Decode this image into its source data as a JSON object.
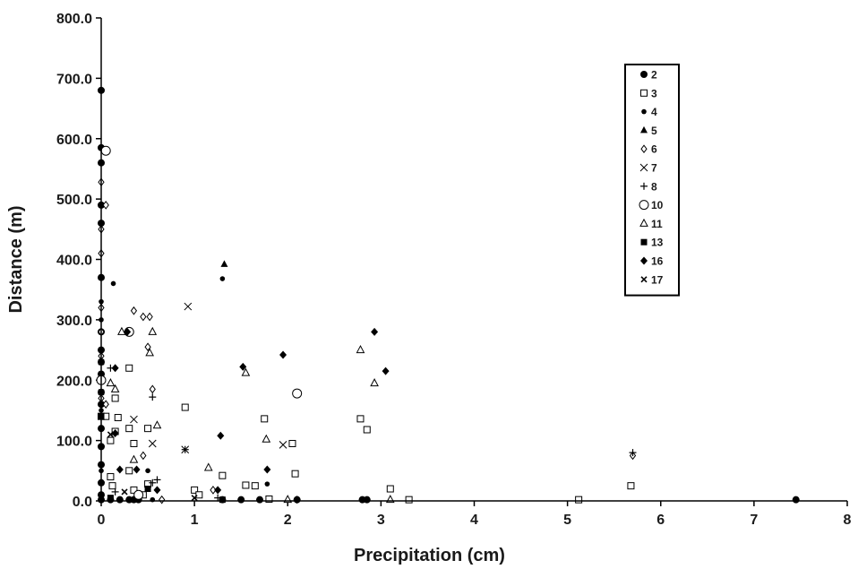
{
  "chart_data": {
    "type": "scatter",
    "title": "",
    "xlabel": "Precipitation (cm)",
    "ylabel": "Distance (m)",
    "xlim": [
      0,
      8
    ],
    "ylim": [
      0,
      800
    ],
    "x_ticks": [
      "0",
      "1",
      "2",
      "3",
      "4",
      "5",
      "6",
      "7",
      "8"
    ],
    "y_ticks": [
      "0.0",
      "100.0",
      "200.0",
      "300.0",
      "400.0",
      "500.0",
      "600.0",
      "700.0",
      "800.0"
    ],
    "grid": false,
    "legend_position": "top-right",
    "series": [
      {
        "name": "2",
        "marker": "filled-circle",
        "points": [
          [
            0,
            680
          ],
          [
            0,
            585
          ],
          [
            0,
            560
          ],
          [
            0,
            490
          ],
          [
            0,
            460
          ],
          [
            0,
            370
          ],
          [
            0,
            280
          ],
          [
            0,
            250
          ],
          [
            0,
            230
          ],
          [
            0,
            210
          ],
          [
            0,
            180
          ],
          [
            0,
            160
          ],
          [
            0,
            120
          ],
          [
            0,
            90
          ],
          [
            0,
            60
          ],
          [
            0,
            30
          ],
          [
            0,
            10
          ],
          [
            0,
            2
          ],
          [
            0.1,
            2
          ],
          [
            0.2,
            2
          ],
          [
            0.3,
            2
          ],
          [
            0.35,
            2
          ],
          [
            0.4,
            2
          ],
          [
            1.3,
            2
          ],
          [
            1.5,
            2
          ],
          [
            1.7,
            2
          ],
          [
            2.1,
            2
          ],
          [
            2.8,
            2
          ],
          [
            2.85,
            2
          ],
          [
            7.45,
            2
          ]
        ]
      },
      {
        "name": "3",
        "marker": "open-square",
        "points": [
          [
            0,
            140
          ],
          [
            0.05,
            140
          ],
          [
            0.15,
            170
          ],
          [
            0.1,
            100
          ],
          [
            0.15,
            115
          ],
          [
            0.18,
            138
          ],
          [
            0.3,
            220
          ],
          [
            0.3,
            120
          ],
          [
            0.35,
            95
          ],
          [
            0.5,
            120
          ],
          [
            0.1,
            40
          ],
          [
            0.12,
            25
          ],
          [
            0.3,
            50
          ],
          [
            0.35,
            18
          ],
          [
            0.45,
            10
          ],
          [
            0.5,
            28
          ],
          [
            0.9,
            155
          ],
          [
            1.0,
            18
          ],
          [
            1.05,
            10
          ],
          [
            1.3,
            42
          ],
          [
            1.55,
            26
          ],
          [
            1.65,
            25
          ],
          [
            1.75,
            136
          ],
          [
            1.8,
            3
          ],
          [
            2.05,
            95
          ],
          [
            2.08,
            45
          ],
          [
            2.78,
            136
          ],
          [
            2.85,
            118
          ],
          [
            3.1,
            20
          ],
          [
            3.3,
            2
          ],
          [
            5.12,
            2
          ],
          [
            5.68,
            25
          ]
        ]
      },
      {
        "name": "4",
        "marker": "small-dot",
        "points": [
          [
            0,
            330
          ],
          [
            0,
            300
          ],
          [
            0,
            200
          ],
          [
            0,
            150
          ],
          [
            0,
            50
          ],
          [
            0.13,
            360
          ],
          [
            0.5,
            50
          ],
          [
            0.55,
            2
          ],
          [
            1.3,
            368
          ],
          [
            1.78,
            28
          ]
        ]
      },
      {
        "name": "5",
        "marker": "filled-triangle",
        "points": [
          [
            1.32,
            392
          ],
          [
            0.3,
            280
          ]
        ]
      },
      {
        "name": "6",
        "marker": "open-diamond",
        "points": [
          [
            0,
            528
          ],
          [
            0,
            450
          ],
          [
            0,
            410
          ],
          [
            0,
            320
          ],
          [
            0,
            280
          ],
          [
            0,
            240
          ],
          [
            0,
            200
          ],
          [
            0,
            170
          ],
          [
            0.05,
            490
          ],
          [
            0.35,
            315
          ],
          [
            0.45,
            305
          ],
          [
            0.52,
            305
          ],
          [
            0.55,
            185
          ],
          [
            0.5,
            255
          ],
          [
            0.05,
            160
          ],
          [
            0.45,
            75
          ],
          [
            0.65,
            2
          ],
          [
            1.2,
            18
          ],
          [
            5.7,
            75
          ]
        ]
      },
      {
        "name": "7",
        "marker": "x",
        "points": [
          [
            0.93,
            322
          ],
          [
            0.35,
            135
          ],
          [
            0.55,
            95
          ],
          [
            0.9,
            85
          ],
          [
            1.95,
            93
          ]
        ]
      },
      {
        "name": "8",
        "marker": "plus",
        "points": [
          [
            0.55,
            172
          ],
          [
            0.1,
            220
          ],
          [
            0.55,
            30
          ],
          [
            0.6,
            35
          ],
          [
            0.15,
            15
          ],
          [
            0.9,
            85
          ],
          [
            1.25,
            5
          ],
          [
            5.7,
            80
          ]
        ]
      },
      {
        "name": "10",
        "marker": "open-circle",
        "points": [
          [
            0.05,
            580
          ],
          [
            0,
            200
          ],
          [
            0.3,
            280
          ],
          [
            2.1,
            178
          ],
          [
            0.4,
            10
          ]
        ]
      },
      {
        "name": "11",
        "marker": "open-triangle",
        "points": [
          [
            0.1,
            195
          ],
          [
            0.15,
            185
          ],
          [
            0.22,
            280
          ],
          [
            0.55,
            280
          ],
          [
            0.52,
            245
          ],
          [
            0.6,
            125
          ],
          [
            0.35,
            68
          ],
          [
            1.15,
            55
          ],
          [
            1.55,
            212
          ],
          [
            1.77,
            102
          ],
          [
            2.78,
            250
          ],
          [
            2.93,
            195
          ],
          [
            2.0,
            2
          ],
          [
            3.1,
            2
          ]
        ]
      },
      {
        "name": "13",
        "marker": "filled-square",
        "points": [
          [
            0,
            140
          ],
          [
            0.1,
            5
          ],
          [
            0.5,
            20
          ],
          [
            1.3,
            2
          ]
        ]
      },
      {
        "name": "16",
        "marker": "filled-diamond",
        "points": [
          [
            0.15,
            220
          ],
          [
            0.28,
            280
          ],
          [
            0.15,
            112
          ],
          [
            0.2,
            52
          ],
          [
            0.38,
            52
          ],
          [
            1.28,
            108
          ],
          [
            1.52,
            222
          ],
          [
            1.95,
            242
          ],
          [
            1.78,
            52
          ],
          [
            2.93,
            280
          ],
          [
            3.05,
            215
          ],
          [
            0.6,
            18
          ],
          [
            1.25,
            18
          ],
          [
            2.1,
            2
          ]
        ]
      },
      {
        "name": "17",
        "marker": "small-x",
        "points": [
          [
            0,
            230
          ],
          [
            0,
            180
          ],
          [
            0.1,
            110
          ],
          [
            0.25,
            15
          ],
          [
            1.0,
            5
          ]
        ]
      }
    ]
  }
}
